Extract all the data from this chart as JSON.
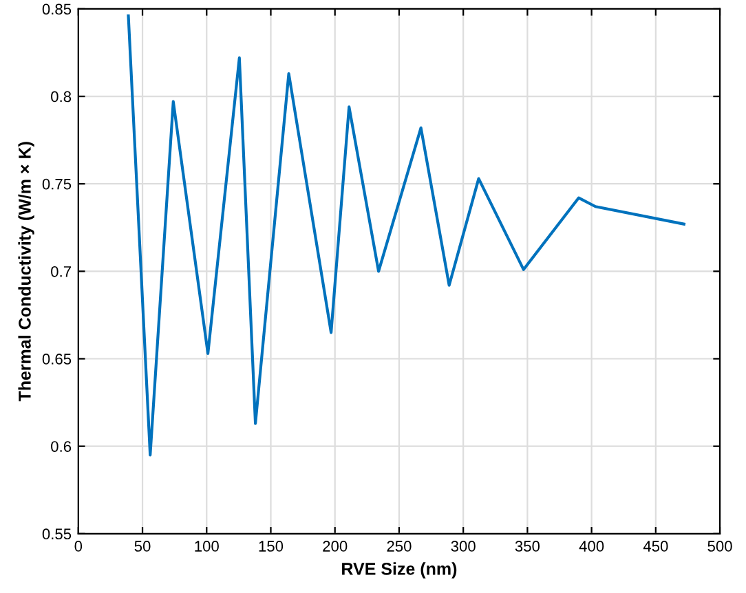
{
  "chart_data": {
    "type": "line",
    "xlabel": "RVE Size (nm)",
    "ylabel": "Thermal Conductivity (W/m × K)",
    "x": [
      39,
      56,
      74,
      101,
      125.5,
      138,
      164,
      197,
      211,
      234,
      267,
      289,
      312,
      347,
      390,
      403,
      472
    ],
    "series": [
      {
        "color": "#0072bd",
        "values": [
          0.846,
          0.595,
          0.797,
          0.653,
          0.822,
          0.613,
          0.813,
          0.665,
          0.794,
          0.7,
          0.782,
          0.692,
          0.753,
          0.701,
          0.742,
          0.737,
          0.727
        ]
      }
    ],
    "xlim": [
      0,
      500
    ],
    "ylim": [
      0.55,
      0.85
    ],
    "xticks": [
      0,
      50,
      100,
      150,
      200,
      250,
      300,
      350,
      400,
      450,
      500
    ],
    "yticks": [
      0.55,
      0.6,
      0.65,
      0.7,
      0.75,
      0.8,
      0.85
    ],
    "grid": true,
    "marker": "none",
    "line_style": "solid",
    "legend": false
  }
}
